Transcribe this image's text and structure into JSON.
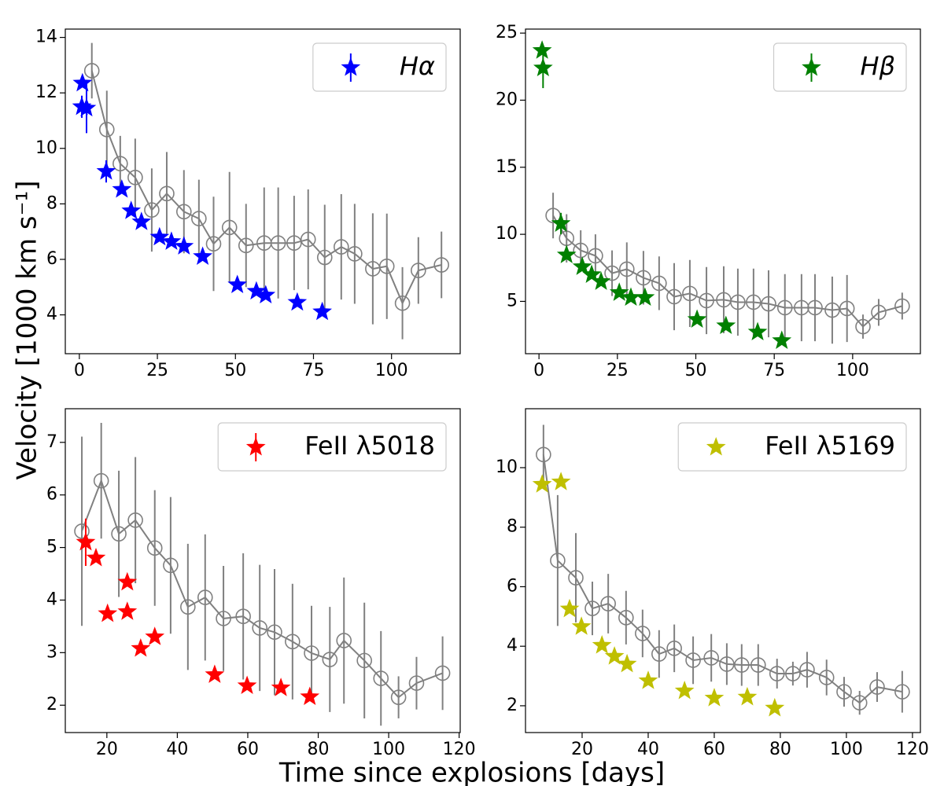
{
  "xlabel": "Time since explosions [days]",
  "ylabel": "Velocity [1000 km s⁻¹]",
  "chart_data": [
    {
      "type": "scatter",
      "legend": "upper right",
      "xlim": [
        -4.5,
        122
      ],
      "ylim": [
        2.6,
        14.3
      ],
      "xticks": [
        0,
        25,
        50,
        75,
        100
      ],
      "yticks": [
        4,
        6,
        8,
        10,
        12,
        14
      ],
      "series": [
        {
          "name": "Hα",
          "color": "#0000ff",
          "marker": "star",
          "x": [
            1,
            0.8,
            2.3,
            8.6,
            13.6,
            16.6,
            19.9,
            25.7,
            29.5,
            33.5,
            39.5,
            50.6,
            56.7,
            59.7,
            69.8,
            77.8
          ],
          "values": [
            12.35,
            11.5,
            11.45,
            9.17,
            8.52,
            7.75,
            7.35,
            6.8,
            6.64,
            6.47,
            6.1,
            5.08,
            4.85,
            4.71,
            4.45,
            4.11
          ],
          "errors": [
            null,
            0.4,
            0.9,
            0.4,
            null,
            null,
            null,
            null,
            null,
            null,
            null,
            null,
            null,
            null,
            null,
            null
          ]
        },
        {
          "color": "#808080",
          "marker": "circle",
          "line": true,
          "x": [
            4,
            8.8,
            13.1,
            17.9,
            23.2,
            28,
            33.5,
            38.3,
            43,
            48.1,
            53.4,
            59.2,
            63.7,
            68.8,
            73.3,
            78.6,
            83.9,
            88.2,
            94,
            98.5,
            103.5,
            108.6,
            116
          ],
          "values": [
            12.8,
            10.68,
            9.45,
            8.95,
            7.78,
            8.37,
            7.72,
            7.47,
            6.56,
            7.15,
            6.5,
            6.59,
            6.59,
            6.59,
            6.72,
            6.07,
            6.45,
            6.2,
            5.66,
            5.75,
            4.42,
            5.6,
            5.8
          ],
          "errors": [
            1.0,
            1.4,
            1.0,
            1.4,
            1.5,
            1.5,
            1.5,
            1.4,
            1.7,
            2.0,
            1.5,
            2.0,
            2.0,
            1.7,
            1.8,
            1.9,
            1.9,
            1.8,
            2.0,
            1.9,
            1.3,
            1.2,
            1.2
          ]
        }
      ]
    },
    {
      "type": "scatter",
      "legend": "upper right",
      "xlim": [
        -4.3,
        121.6
      ],
      "ylim": [
        1.1,
        25.3
      ],
      "xticks": [
        0,
        25,
        50,
        75,
        100
      ],
      "yticks": [
        5,
        10,
        15,
        20,
        25
      ],
      "series": [
        {
          "name": "Hβ",
          "color": "#008000",
          "marker": "star",
          "x": [
            1,
            1.3,
            7,
            8.8,
            13.8,
            16.8,
            19.8,
            25.6,
            29.3,
            33.8,
            50.4,
            59.6,
            69.7,
            77.4
          ],
          "values": [
            23.7,
            22.4,
            10.8,
            8.46,
            7.58,
            6.99,
            6.47,
            5.65,
            5.29,
            5.29,
            3.65,
            3.18,
            2.71,
            2.07
          ],
          "errors": [
            null,
            1.5,
            0.8,
            null,
            null,
            null,
            null,
            null,
            null,
            null,
            null,
            null,
            null,
            null
          ]
        },
        {
          "color": "#808080",
          "marker": "circle",
          "line": true,
          "x": [
            4.5,
            8.8,
            13.3,
            18,
            23.3,
            28,
            33.3,
            38.3,
            43.1,
            48.1,
            53.4,
            58.9,
            63.4,
            68.4,
            73.2,
            78.4,
            83.7,
            88,
            93.5,
            98.2,
            103.3,
            108.3,
            115.8
          ],
          "values": [
            11.4,
            9.7,
            8.8,
            8.4,
            7.1,
            7.4,
            6.76,
            6.35,
            5.35,
            5.59,
            5.06,
            5.12,
            4.94,
            4.94,
            4.82,
            4.53,
            4.53,
            4.53,
            4.35,
            4.47,
            3.12,
            4.18,
            4.65
          ],
          "errors": [
            1.7,
            1.8,
            1.5,
            1.6,
            1.7,
            2.0,
            2.0,
            2.0,
            2.5,
            2.5,
            2.5,
            2.5,
            2.5,
            2.5,
            2.5,
            2.5,
            2.5,
            2.5,
            2.5,
            2.5,
            0.9,
            1.0,
            1.0
          ]
        }
      ]
    },
    {
      "type": "scatter",
      "legend": "upper right",
      "xlim": [
        8.2,
        120.3
      ],
      "ylim": [
        1.48,
        7.64
      ],
      "xticks": [
        20,
        40,
        60,
        80,
        100,
        120
      ],
      "yticks": [
        2,
        3,
        4,
        5,
        6,
        7
      ],
      "series": [
        {
          "name": "FeII λ5018",
          "color": "#ff0000",
          "marker": "star",
          "x": [
            14,
            16.9,
            20.2,
            25.8,
            25.8,
            29.6,
            33.6,
            50.6,
            59.8,
            69.4,
            77.6
          ],
          "values": [
            5.1,
            4.8,
            3.74,
            4.34,
            3.78,
            3.08,
            3.3,
            2.58,
            2.37,
            2.33,
            2.16
          ],
          "errors": [
            0.45,
            null,
            null,
            null,
            null,
            null,
            null,
            null,
            null,
            null,
            null
          ]
        },
        {
          "color": "#808080",
          "marker": "circle",
          "line": true,
          "x": [
            12.9,
            18.4,
            23.4,
            28.1,
            33.6,
            38.1,
            43,
            47.9,
            53.1,
            58.7,
            63.4,
            67.6,
            72.7,
            78.1,
            83.3,
            87.3,
            93.1,
            97.8,
            102.8,
            107.9,
            115.3
          ],
          "values": [
            5.31,
            6.27,
            5.26,
            5.52,
            4.99,
            4.66,
            3.87,
            4.05,
            3.65,
            3.69,
            3.47,
            3.39,
            3.21,
            2.99,
            2.87,
            3.23,
            2.85,
            2.51,
            2.15,
            2.42,
            2.61
          ],
          "errors": [
            1.8,
            1.1,
            1.2,
            1.2,
            1.1,
            1.3,
            1.2,
            1.2,
            1.0,
            1.2,
            1.2,
            1.2,
            1.1,
            0.9,
            1.0,
            1.2,
            1.1,
            0.9,
            0.4,
            0.5,
            0.7
          ]
        }
      ]
    },
    {
      "type": "scatter",
      "legend": "upper right",
      "xlim": [
        2.86,
        122.4
      ],
      "ylim": [
        1.1,
        11.98
      ],
      "xticks": [
        20,
        40,
        60,
        80,
        100,
        120
      ],
      "yticks": [
        2,
        4,
        6,
        8,
        10
      ],
      "series": [
        {
          "name": "FeII λ5169",
          "color": "#bfbf00",
          "marker": "star",
          "x": [
            7.9,
            13.6,
            16.2,
            19.8,
            26,
            29.8,
            33.6,
            40,
            51,
            60,
            70,
            78.3
          ],
          "values": [
            9.44,
            9.52,
            5.25,
            4.66,
            4.03,
            3.66,
            3.4,
            2.84,
            2.5,
            2.26,
            2.29,
            1.92
          ]
        },
        {
          "color": "#808080",
          "marker": "circle",
          "line": true,
          "x": [
            8.3,
            12.6,
            18.1,
            23.1,
            27.9,
            33.3,
            38.3,
            43.3,
            47.9,
            53.6,
            59.1,
            63.8,
            68.3,
            73.3,
            79,
            83.8,
            88.1,
            94,
            99.3,
            104,
            109.3,
            116.9
          ],
          "values": [
            10.44,
            6.88,
            6.3,
            5.27,
            5.43,
            4.96,
            4.43,
            3.74,
            3.93,
            3.53,
            3.61,
            3.4,
            3.37,
            3.37,
            3.08,
            3.08,
            3.21,
            2.95,
            2.47,
            2.1,
            2.63,
            2.47
          ],
          "errors": [
            1.0,
            2.2,
            1.5,
            0.9,
            1.0,
            0.9,
            0.8,
            0.8,
            0.8,
            0.8,
            0.8,
            0.7,
            0.7,
            0.7,
            0.5,
            0.4,
            0.6,
            0.6,
            0.5,
            0.4,
            0.5,
            0.7
          ]
        }
      ]
    }
  ]
}
